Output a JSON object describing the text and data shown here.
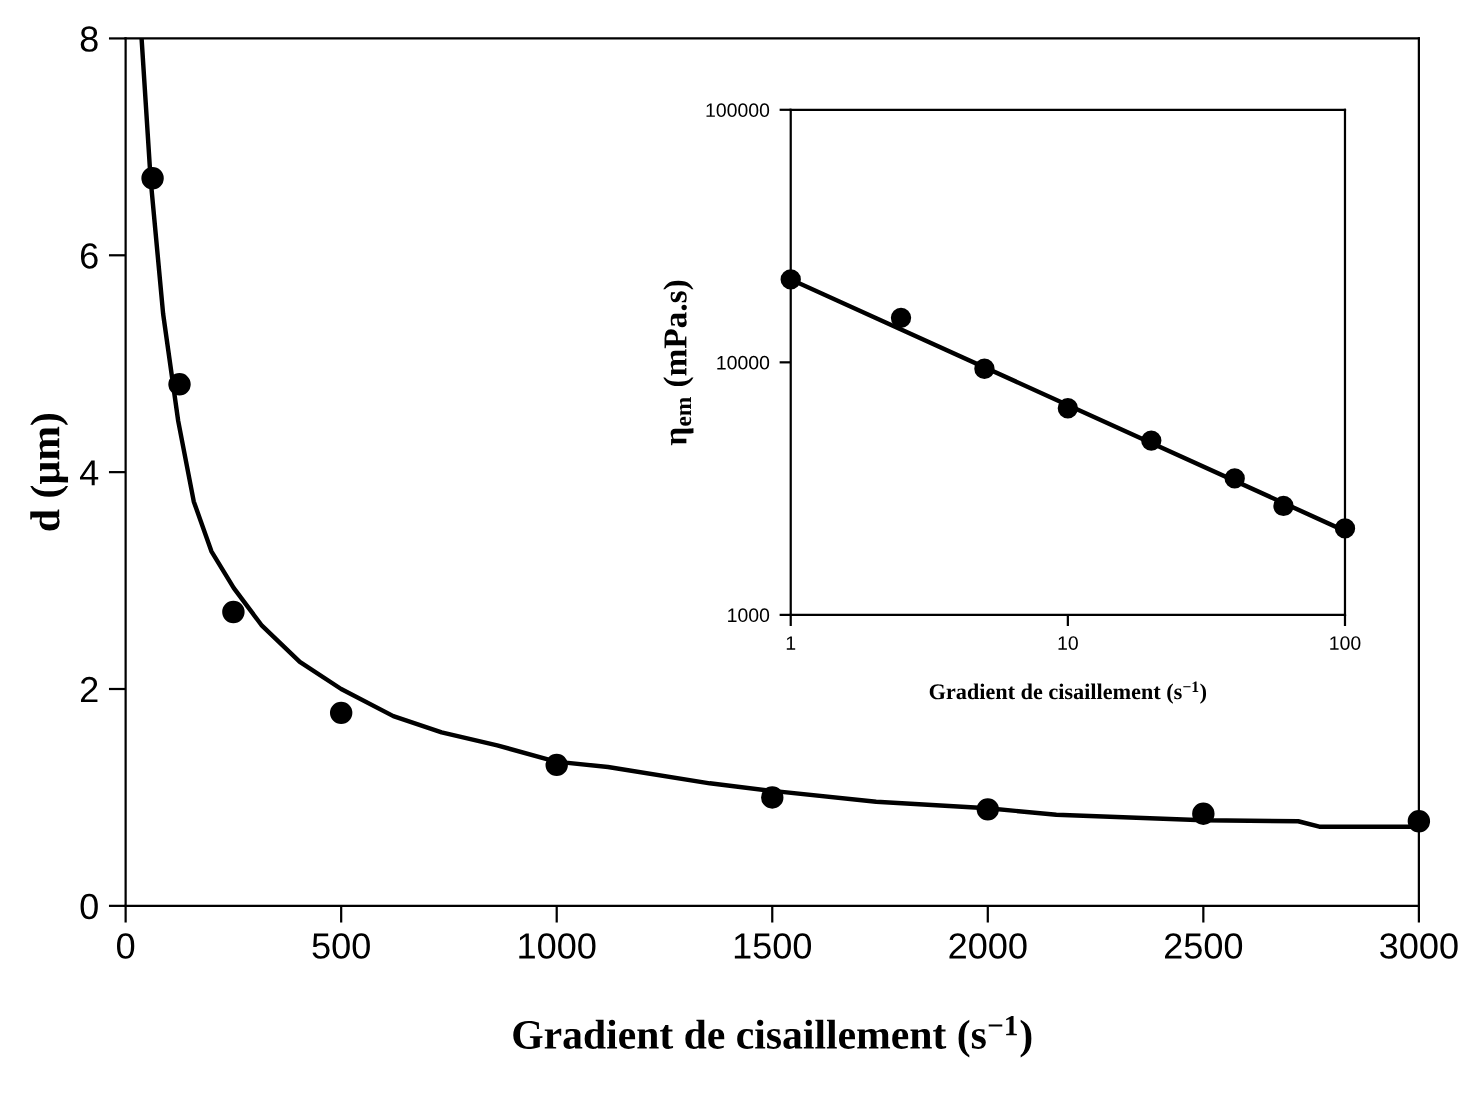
{
  "chart_data": [
    {
      "type": "scatter",
      "xlabel": "Gradient de cisaillement (s$^{−1}$)",
      "ylabel": "d (µm)",
      "xlim": [
        0,
        3000
      ],
      "xticks": [
        0,
        500,
        1000,
        1500,
        2000,
        2500,
        3000
      ],
      "ylim": [
        0,
        8
      ],
      "yticks": [
        0,
        2,
        4,
        6,
        8
      ],
      "grid": false,
      "legend": false,
      "series": [
        {
          "color": "#000000",
          "marker": "circle",
          "x": [
            62.5,
            125,
            250,
            500,
            1000,
            1500,
            2000,
            2500,
            3000
          ],
          "values": [
            6.71,
            4.81,
            2.71,
            1.78,
            1.3,
            1.0,
            0.89,
            0.85,
            0.78
          ]
        },
        {
          "type": "line",
          "color": "#000000",
          "marker": "none",
          "line_style": "solid",
          "x": [
            37,
            58,
            87,
            122,
            158,
            199,
            251,
            315,
            404,
            500,
            621,
            733,
            862,
            998,
            1119,
            1355,
            1500,
            1741,
            2000,
            2159,
            2500,
            2720,
            2769,
            3000
          ],
          "values": [
            8,
            6.7,
            5.46,
            4.47,
            3.73,
            3.27,
            2.93,
            2.59,
            2.25,
            2.0,
            1.75,
            1.6,
            1.48,
            1.33,
            1.28,
            1.13,
            1.06,
            0.96,
            0.9,
            0.84,
            0.79,
            0.78,
            0.73,
            0.73
          ]
        }
      ]
    },
    {
      "type": "scatter",
      "xlabel": "Gradient de cisaillement (s$^{−1}$)",
      "ylabel": "η$_{em}$ (mPa.s)",
      "log": "xy",
      "xlim": [
        1,
        100
      ],
      "xticks": [
        1,
        10,
        100
      ],
      "ylim": [
        1000,
        100000
      ],
      "yticks": [
        1000,
        10000,
        100000
      ],
      "grid": false,
      "legend": false,
      "series": [
        {
          "color": "#000000",
          "marker": "circle",
          "x": [
            1,
            2.5,
            5,
            10,
            20,
            40,
            60,
            100
          ],
          "values": [
            21300,
            15000,
            9430,
            6580,
            4900,
            3470,
            2700,
            2200
          ]
        },
        {
          "type": "line",
          "color": "#000000",
          "marker": "none",
          "line_style": "solid",
          "x": [
            1,
            100
          ],
          "values": [
            21300,
            2150
          ]
        }
      ]
    }
  ]
}
